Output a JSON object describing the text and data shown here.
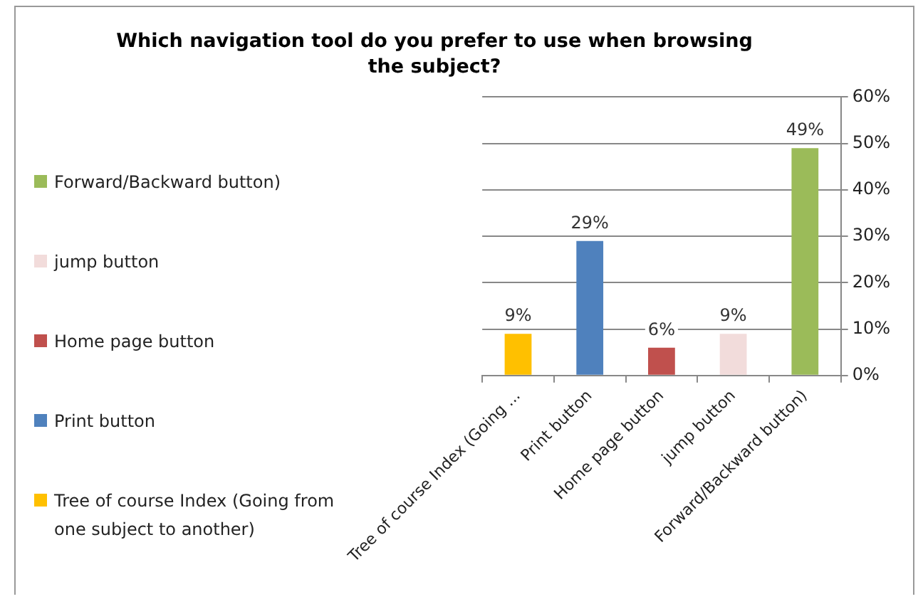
{
  "chart_data": {
    "type": "bar",
    "title": "Which navigation tool do you prefer to use when browsing the subject?",
    "categories": [
      "Tree of course Index (Going ...",
      "Print button",
      "Home page button",
      "jump button",
      "Forward/Backward button)"
    ],
    "series": [
      {
        "name": "Tree of course Index (Going from one subject to another)",
        "color": "#ffc000",
        "values": [
          9,
          null,
          null,
          null,
          null
        ],
        "value_labels": [
          "9%",
          null,
          null,
          null,
          null
        ]
      },
      {
        "name": "Print button",
        "color": "#4f81bd",
        "values": [
          null,
          29,
          null,
          null,
          null
        ],
        "value_labels": [
          null,
          "29%",
          null,
          null,
          null
        ]
      },
      {
        "name": "Home page button",
        "color": "#c0504d",
        "values": [
          null,
          null,
          6,
          null,
          null
        ],
        "value_labels": [
          null,
          null,
          "6%",
          null,
          null
        ]
      },
      {
        "name": "jump button",
        "color": "#f2dcdb",
        "values": [
          null,
          null,
          null,
          9,
          null
        ],
        "value_labels": [
          null,
          null,
          null,
          "9%",
          null
        ]
      },
      {
        "name": "Forward/Backward button)",
        "color": "#9bbb59",
        "values": [
          null,
          null,
          null,
          null,
          49
        ],
        "value_labels": [
          null,
          null,
          null,
          null,
          "49%"
        ]
      }
    ],
    "ylim": [
      0,
      60
    ],
    "yticks": [
      {
        "value": 0,
        "label": "0%"
      },
      {
        "value": 10,
        "label": "10%"
      },
      {
        "value": 20,
        "label": "20%"
      },
      {
        "value": 30,
        "label": "30%"
      },
      {
        "value": 40,
        "label": "40%"
      },
      {
        "value": 50,
        "label": "50%"
      },
      {
        "value": 60,
        "label": "60%"
      }
    ],
    "grid": "y",
    "legend": "left"
  }
}
